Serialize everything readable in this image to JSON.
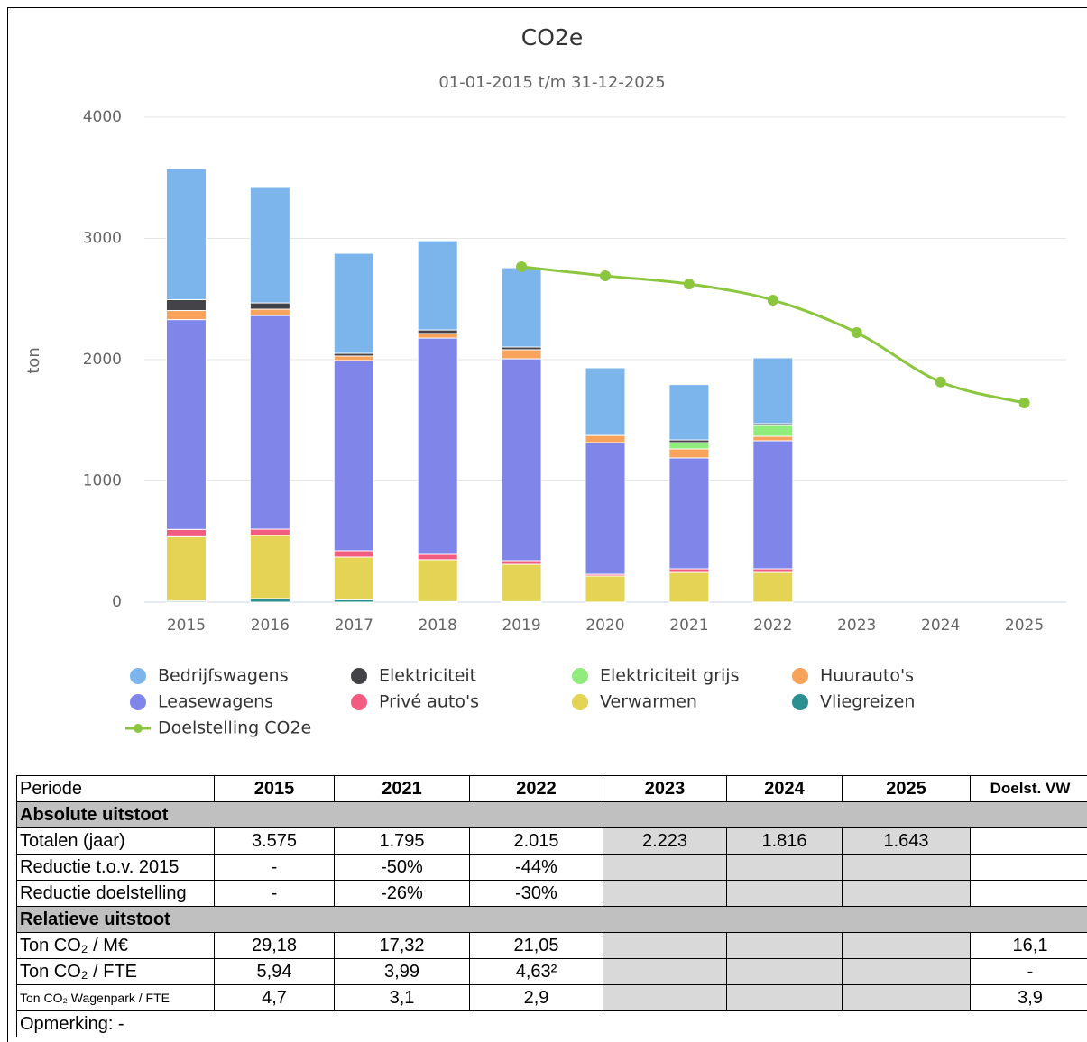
{
  "chart_data": {
    "type": "bar",
    "stacked": true,
    "title": "CO2e",
    "subtitle": "01-01-2015 t/m 31-12-2025",
    "y_label": "ton",
    "categories": [
      "2015",
      "2016",
      "2017",
      "2018",
      "2019",
      "2020",
      "2021",
      "2022",
      "2023",
      "2024",
      "2025"
    ],
    "ylim": [
      0,
      4000
    ],
    "yticks": [
      0,
      1000,
      2000,
      3000,
      4000
    ],
    "grid": true,
    "series": [
      {
        "name": "Bedrijfswagens",
        "color": "#7cb5ec",
        "values": [
          1080,
          952,
          825,
          736,
          654,
          558,
          457,
          543,
          null,
          null,
          null
        ]
      },
      {
        "name": "Elektriciteit",
        "color": "#434348",
        "values": [
          90,
          52,
          22,
          29,
          22,
          0,
          22,
          15,
          null,
          null,
          null
        ]
      },
      {
        "name": "Elektriciteit grijs",
        "color": "#90ed7d",
        "values": [
          0,
          0,
          0,
          0,
          0,
          0,
          52,
          89,
          null,
          null,
          null
        ]
      },
      {
        "name": "Huurauto's",
        "color": "#f7a35c",
        "values": [
          75,
          52,
          37,
          38,
          75,
          59,
          74,
          37,
          null,
          null,
          null
        ]
      },
      {
        "name": "Leasewagens",
        "color": "#8085e9",
        "values": [
          1730,
          1762,
          1569,
          1784,
          1665,
          1086,
          915,
          1056,
          null,
          null,
          null
        ]
      },
      {
        "name": "Privé auto's",
        "color": "#f15c80",
        "values": [
          60,
          52,
          52,
          44,
          30,
          14,
          30,
          30,
          null,
          null,
          null
        ]
      },
      {
        "name": "Verwarmen",
        "color": "#e4d354",
        "values": [
          530,
          520,
          352,
          345,
          307,
          216,
          245,
          245,
          null,
          null,
          null
        ]
      },
      {
        "name": "Vliegreizen",
        "color": "#2b908f",
        "values": [
          10,
          30,
          20,
          5,
          5,
          0,
          0,
          0,
          null,
          null,
          null
        ]
      },
      {
        "name": "Doelstelling CO2e",
        "type": "line",
        "color": "#8cc63f",
        "values": [
          null,
          null,
          null,
          null,
          2766,
          2691,
          2624,
          2491,
          2223,
          1816,
          1643
        ]
      }
    ]
  },
  "table": {
    "header": [
      "Periode",
      "2015",
      "2021",
      "2022",
      "2023",
      "2024",
      "2025",
      "Doelst. VW"
    ],
    "sections": [
      "Absolute uitstoot",
      "Relatieve uitstoot"
    ],
    "rows": [
      {
        "label": "Totalen (jaar)",
        "cells": [
          "3.575",
          "1.795",
          "2.015",
          "2.223",
          "1.816",
          "1.643"
        ]
      },
      {
        "label": "Reductie t.o.v. 2015",
        "cells": [
          "-",
          "-50%",
          "-44%"
        ]
      },
      {
        "label": "Reductie doelstelling",
        "cells": [
          "-",
          "-26%",
          "-30%"
        ]
      },
      {
        "label": "Ton CO₂ / M€",
        "cells": [
          "29,18",
          "17,32",
          "21,05"
        ],
        "doelst": "16,1"
      },
      {
        "label": "Ton CO₂ / FTE",
        "cells": [
          "5,94",
          "3,99",
          "4,63²"
        ],
        "doelst": "-"
      },
      {
        "label": "Ton CO₂ Wagenpark / FTE",
        "cells": [
          "4,7",
          "3,1",
          "2,9"
        ],
        "doelst": "3,9"
      }
    ],
    "note": "Opmerking: -"
  }
}
